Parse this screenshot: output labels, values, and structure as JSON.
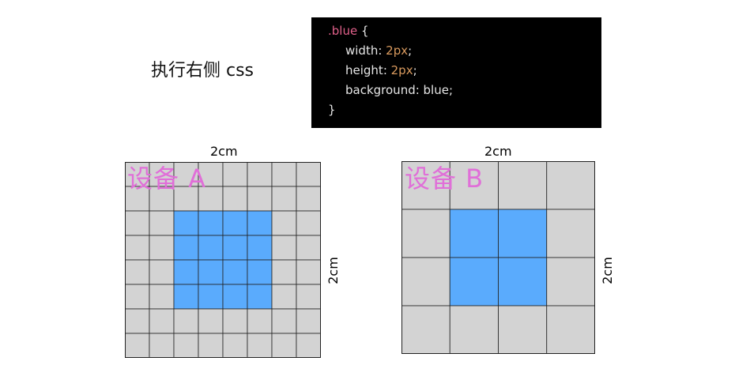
{
  "caption": "执行右侧 css",
  "code": {
    "selector": ".blue",
    "open_brace": " {",
    "close_brace": "}",
    "width_prop": "width: ",
    "width_val": "2px",
    "height_prop": "height: ",
    "height_val": "2px",
    "bg_line": "background: blue;",
    "semicolon": ";"
  },
  "device_a": {
    "label": "设备 A",
    "width_label": "2cm",
    "height_label": "2cm",
    "grid_cols": 8,
    "grid_rows": 8,
    "blue_start": 2,
    "blue_end": 5
  },
  "device_b": {
    "label": "设备 B",
    "width_label": "2cm",
    "height_label": "2cm",
    "grid_cols": 4,
    "grid_rows": 4,
    "blue_start": 1,
    "blue_end": 2
  },
  "colors": {
    "cell_gray": "#d3d3d3",
    "cell_blue": "#5aabfd",
    "grid_line": "#222222",
    "label_pink": "#e06fd8"
  }
}
